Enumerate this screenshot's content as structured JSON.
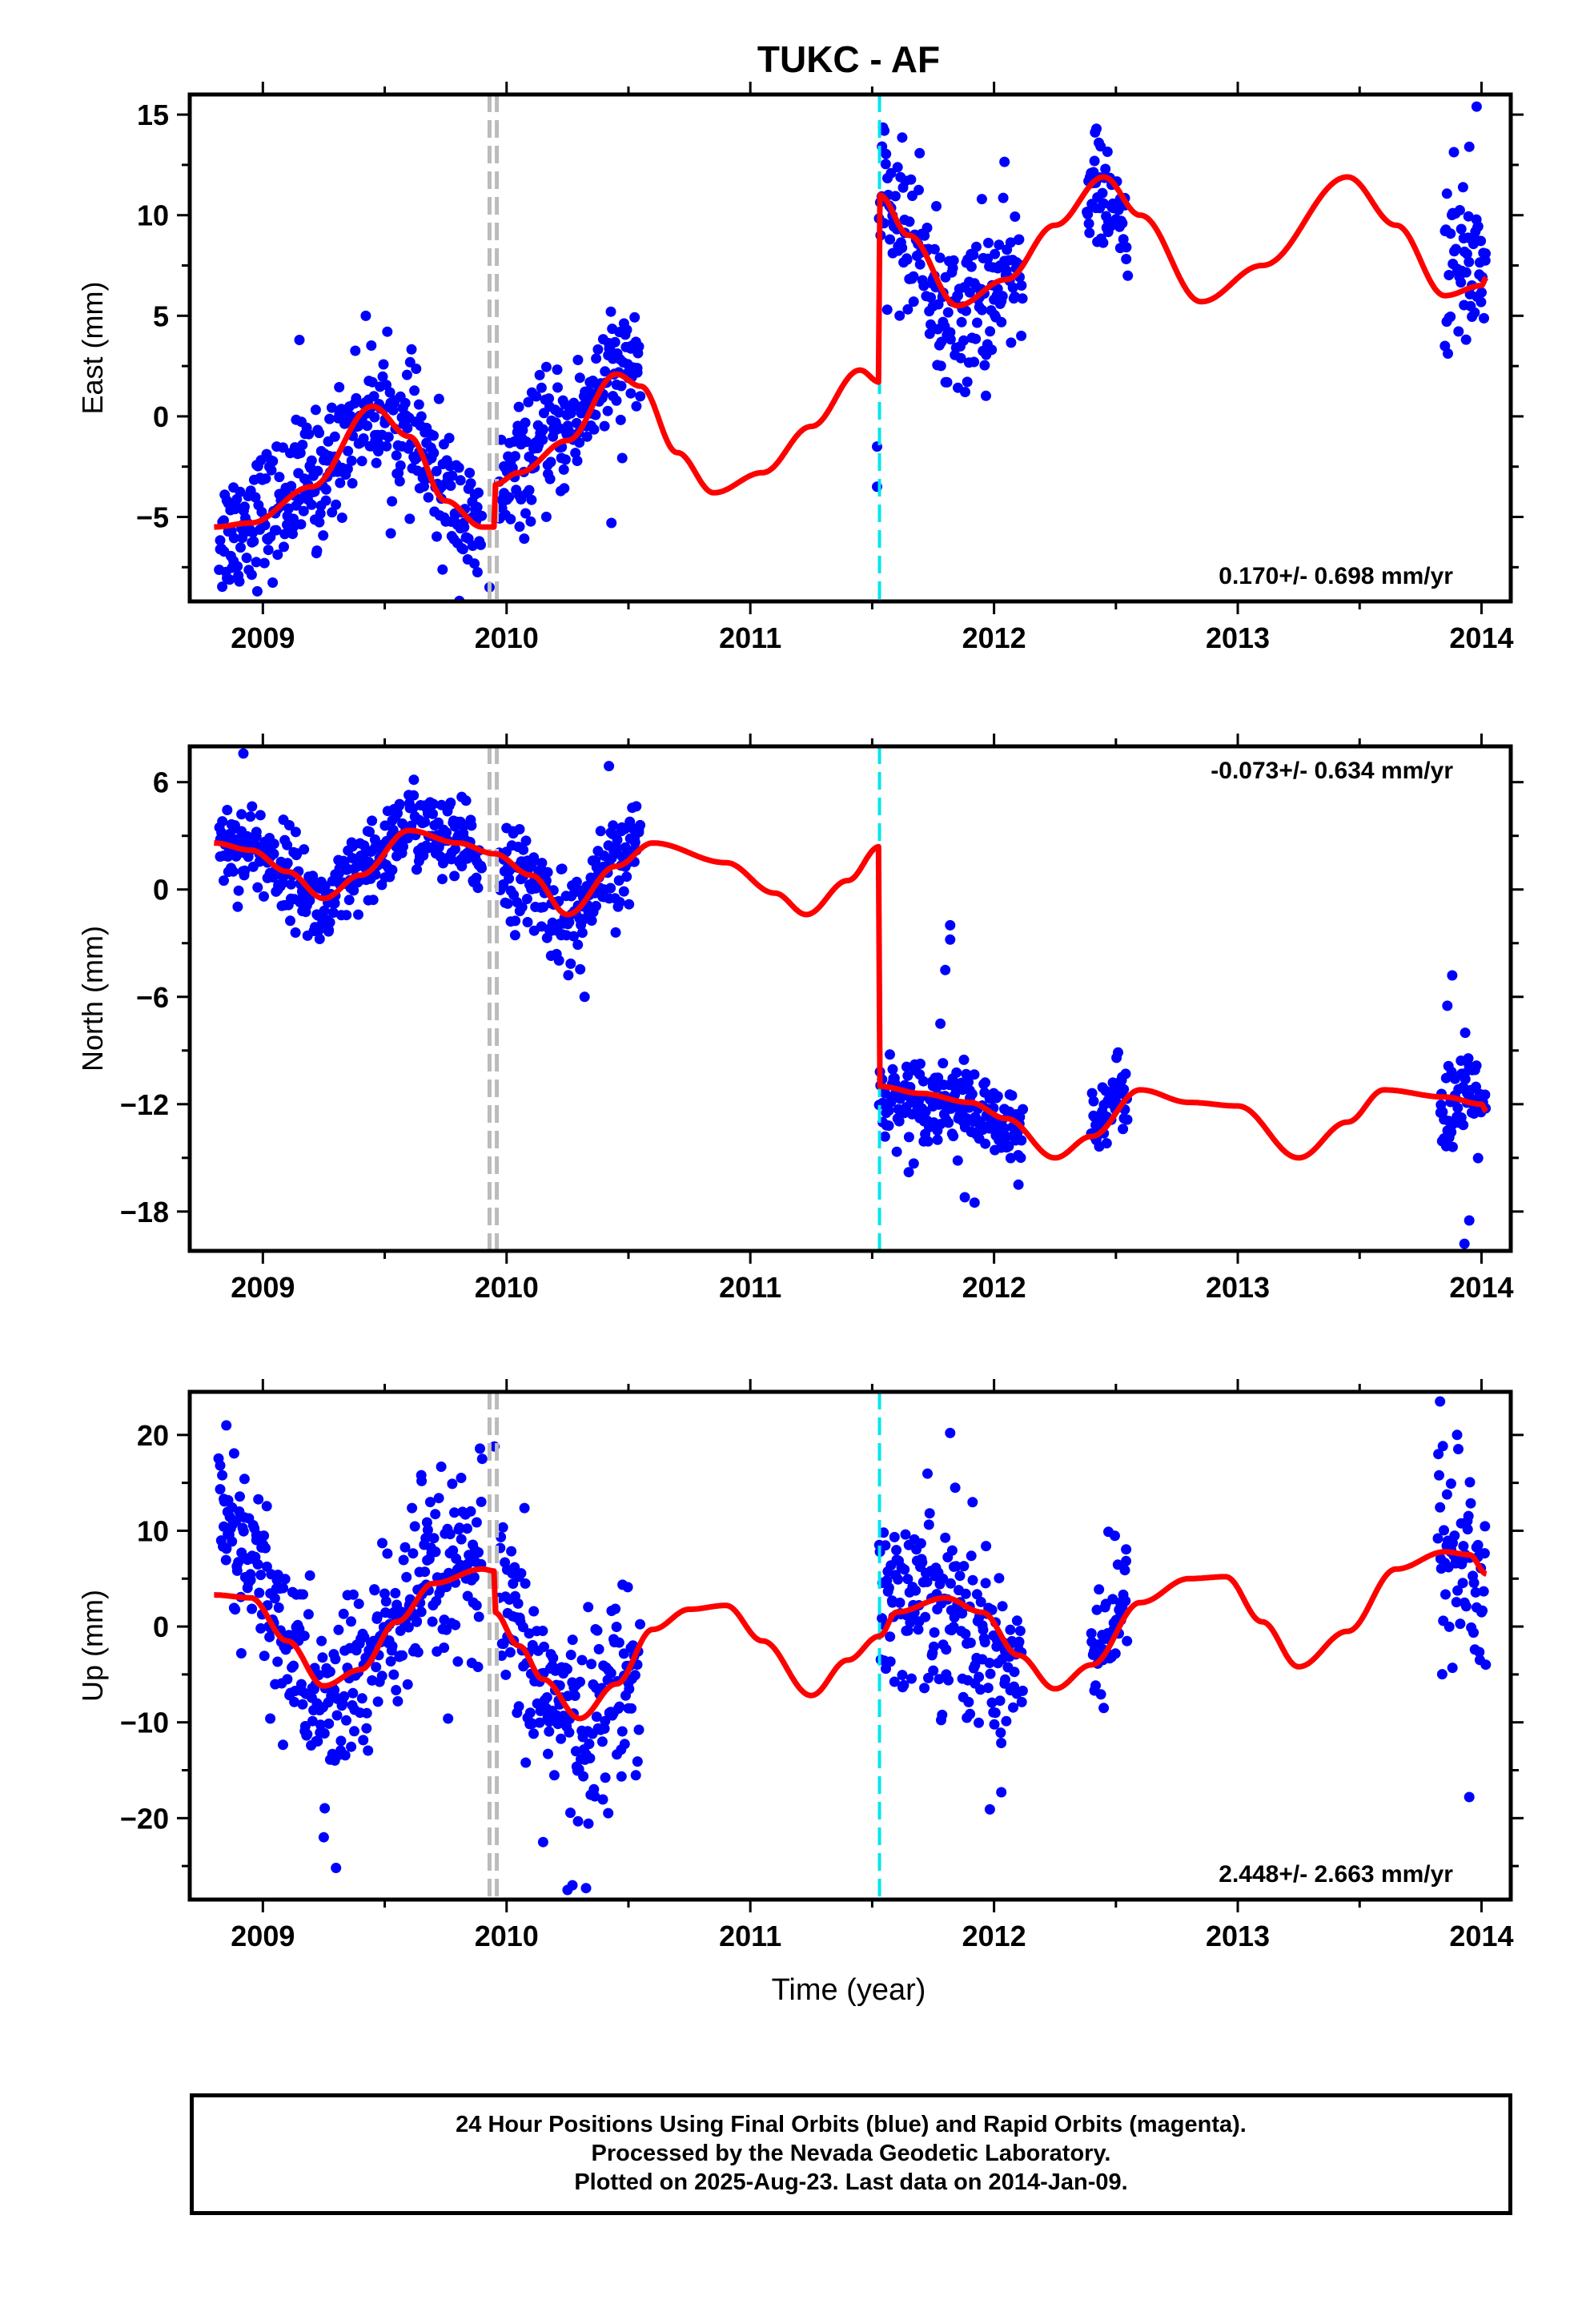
{
  "title": "TUKC - AF",
  "xlabel": "Time (year)",
  "caption": [
    "24 Hour Positions Using Final Orbits (blue) and Rapid Orbits (magenta).",
    "Processed by the Nevada Geodetic Laboratory.",
    "Plotted on 2025-Aug-23. Last data on 2014-Jan-09."
  ],
  "colors": {
    "final_orbits": "#0000ff",
    "model": "#ff0000",
    "equipment_change": "#bbbbbb",
    "earthquake": "#00e5ee"
  },
  "chart_data": [
    {
      "type": "scatter",
      "ylabel": "East (mm)",
      "xlim": [
        2008.7,
        2014.12
      ],
      "ylim": [
        -9.2,
        16
      ],
      "xticks": [
        2009,
        2010,
        2011,
        2012,
        2013,
        2014
      ],
      "yticks": [
        -5,
        0,
        5,
        10,
        15
      ],
      "rate": "0.170+/- 0.698 mm/yr",
      "rate_position": "bottom-right",
      "vlines_gray": [
        2009.93,
        2009.96
      ],
      "vline_cyan": 2011.53,
      "model_knots": [
        [
          2008.8,
          -5.5
        ],
        [
          2008.95,
          -5.3
        ],
        [
          2009.2,
          -3.5
        ],
        [
          2009.45,
          0.5
        ],
        [
          2009.6,
          -1.0
        ],
        [
          2009.75,
          -4.2
        ],
        [
          2009.9,
          -5.5
        ],
        [
          2009.95,
          -5.5
        ],
        [
          2009.95,
          -3.4
        ],
        [
          2010.05,
          -2.8
        ],
        [
          2010.25,
          -1.2
        ],
        [
          2010.45,
          2.1
        ],
        [
          2010.55,
          1.5
        ],
        [
          2010.7,
          -1.8
        ],
        [
          2010.85,
          -3.8
        ],
        [
          2011.05,
          -2.8
        ],
        [
          2011.25,
          -0.5
        ],
        [
          2011.45,
          2.3
        ],
        [
          2011.53,
          1.7
        ],
        [
          2011.53,
          11.0
        ],
        [
          2011.65,
          9.0
        ],
        [
          2011.85,
          5.5
        ],
        [
          2012.05,
          6.8
        ],
        [
          2012.25,
          9.5
        ],
        [
          2012.45,
          11.9
        ],
        [
          2012.6,
          10.0
        ],
        [
          2012.85,
          5.7
        ],
        [
          2013.1,
          7.5
        ],
        [
          2013.45,
          11.9
        ],
        [
          2013.65,
          9.5
        ],
        [
          2013.85,
          6.0
        ],
        [
          2014.0,
          6.5
        ],
        [
          2014.02,
          6.9
        ]
      ],
      "segments": [
        {
          "x0": 2008.82,
          "x1": 2009.9,
          "amp": 1.6,
          "y": [
            [
              2008.8,
              -6.0
            ],
            [
              2009.0,
              -4.8
            ],
            [
              2009.2,
              -3.2
            ],
            [
              2009.45,
              0.5
            ],
            [
              2009.6,
              -1.0
            ],
            [
              2009.75,
              -3.8
            ],
            [
              2009.9,
              -6.2
            ]
          ]
        },
        {
          "x0": 2009.97,
          "x1": 2010.55,
          "amp": 1.5,
          "y": [
            [
              2009.97,
              -3.5
            ],
            [
              2010.2,
              -1.0
            ],
            [
              2010.45,
              2.1
            ],
            [
              2010.55,
              2.8
            ]
          ]
        },
        {
          "x0": 2011.53,
          "x1": 2012.12,
          "amp": 1.9,
          "y": [
            [
              2011.53,
              10.5
            ],
            [
              2011.7,
              8.5
            ],
            [
              2011.8,
              4.5
            ],
            [
              2011.9,
              5.2
            ],
            [
              2012.12,
              7.2
            ]
          ]
        },
        {
          "x0": 2012.38,
          "x1": 2012.55,
          "amp": 1.2,
          "y": [
            [
              2012.38,
              11.5
            ],
            [
              2012.55,
              9.5
            ]
          ]
        },
        {
          "x0": 2013.85,
          "x1": 2014.02,
          "amp": 2.2,
          "y": [
            [
              2013.85,
              7.5
            ],
            [
              2014.02,
              7.8
            ]
          ]
        }
      ],
      "outliers": [
        [
          2011.52,
          -1.5
        ],
        [
          2011.52,
          -3.5
        ],
        [
          2011.55,
          14.2
        ],
        [
          2012.42,
          14.3
        ],
        [
          2013.98,
          15.4
        ],
        [
          2013.95,
          13.4
        ],
        [
          2010.43,
          -5.3
        ],
        [
          2009.93,
          -8.5
        ],
        [
          2009.15,
          3.8
        ],
        [
          2009.22,
          -6.8
        ],
        [
          2013.85,
          3.5
        ],
        [
          2011.95,
          10.8
        ]
      ]
    },
    {
      "type": "scatter",
      "ylabel": "North (mm)",
      "xlim": [
        2008.7,
        2014.12
      ],
      "ylim": [
        -20.2,
        8
      ],
      "xticks": [
        2009,
        2010,
        2011,
        2012,
        2013,
        2014
      ],
      "yticks": [
        -18,
        -12,
        -6,
        0,
        6
      ],
      "rate": "-0.073+/- 0.634 mm/yr",
      "rate_position": "top-right",
      "vlines_gray": [
        2009.93,
        2009.96
      ],
      "vline_cyan": 2011.53,
      "model_knots": [
        [
          2008.8,
          2.6
        ],
        [
          2008.95,
          2.2
        ],
        [
          2009.1,
          1.0
        ],
        [
          2009.25,
          -0.5
        ],
        [
          2009.4,
          0.8
        ],
        [
          2009.6,
          3.3
        ],
        [
          2009.8,
          2.6
        ],
        [
          2009.95,
          2.0
        ],
        [
          2010.1,
          0.8
        ],
        [
          2010.25,
          -1.4
        ],
        [
          2010.45,
          1.3
        ],
        [
          2010.6,
          2.6
        ],
        [
          2010.9,
          1.5
        ],
        [
          2011.1,
          -0.2
        ],
        [
          2011.23,
          -1.4
        ],
        [
          2011.4,
          0.5
        ],
        [
          2011.53,
          2.4
        ],
        [
          2011.53,
          -11.0
        ],
        [
          2011.7,
          -11.4
        ],
        [
          2011.9,
          -11.9
        ],
        [
          2012.05,
          -12.8
        ],
        [
          2012.25,
          -15.0
        ],
        [
          2012.4,
          -13.8
        ],
        [
          2012.6,
          -11.2
        ],
        [
          2012.8,
          -11.9
        ],
        [
          2013.0,
          -12.1
        ],
        [
          2013.25,
          -15.0
        ],
        [
          2013.45,
          -13.0
        ],
        [
          2013.6,
          -11.2
        ],
        [
          2013.85,
          -11.6
        ],
        [
          2014.0,
          -12.0
        ],
        [
          2014.02,
          -12.4
        ]
      ],
      "segments": [
        {
          "x0": 2008.82,
          "x1": 2009.9,
          "amp": 1.2,
          "y": [
            [
              2008.8,
              2.6
            ],
            [
              2008.95,
              2.4
            ],
            [
              2009.1,
              1.0
            ],
            [
              2009.25,
              -1.2
            ],
            [
              2009.4,
              0.8
            ],
            [
              2009.6,
              3.6
            ],
            [
              2009.8,
              2.5
            ],
            [
              2009.9,
              1.5
            ]
          ]
        },
        {
          "x0": 2009.97,
          "x1": 2010.55,
          "amp": 1.3,
          "y": [
            [
              2009.97,
              1.5
            ],
            [
              2010.1,
              0.2
            ],
            [
              2010.25,
              -1.8
            ],
            [
              2010.45,
              1.0
            ],
            [
              2010.55,
              3.0
            ]
          ]
        },
        {
          "x0": 2011.53,
          "x1": 2012.12,
          "amp": 1.1,
          "y": [
            [
              2011.53,
              -11.5
            ],
            [
              2011.8,
              -11.8
            ],
            [
              2012.12,
              -13.8
            ]
          ]
        },
        {
          "x0": 2012.4,
          "x1": 2012.55,
          "amp": 0.9,
          "y": [
            [
              2012.4,
              -12.6
            ],
            [
              2012.55,
              -11.2
            ]
          ]
        },
        {
          "x0": 2013.83,
          "x1": 2014.02,
          "amp": 1.4,
          "y": [
            [
              2013.83,
              -12.2
            ],
            [
              2014.02,
              -11.5
            ]
          ]
        }
      ],
      "outliers": [
        [
          2008.92,
          7.6
        ],
        [
          2010.42,
          6.9
        ],
        [
          2010.32,
          -6.0
        ],
        [
          2011.82,
          -2.0
        ],
        [
          2011.82,
          -2.8
        ],
        [
          2011.8,
          -4.5
        ],
        [
          2011.78,
          -7.5
        ],
        [
          2011.92,
          -17.5
        ],
        [
          2011.88,
          -17.2
        ],
        [
          2013.88,
          -4.8
        ],
        [
          2013.86,
          -6.5
        ],
        [
          2013.95,
          -18.5
        ],
        [
          2013.93,
          -19.8
        ],
        [
          2012.1,
          -16.5
        ],
        [
          2011.65,
          -15.8
        ]
      ]
    },
    {
      "type": "scatter",
      "ylabel": "Up (mm)",
      "xlim": [
        2008.7,
        2014.12
      ],
      "ylim": [
        -28.5,
        24.5
      ],
      "xticks": [
        2009,
        2010,
        2011,
        2012,
        2013,
        2014
      ],
      "yticks": [
        -20,
        -10,
        0,
        10,
        20
      ],
      "rate": "2.448+/- 2.663 mm/yr",
      "rate_position": "bottom-right",
      "vlines_gray": [
        2009.93,
        2009.96
      ],
      "vline_cyan": 2011.53,
      "model_knots": [
        [
          2008.8,
          3.3
        ],
        [
          2008.95,
          3.0
        ],
        [
          2009.1,
          -1.5
        ],
        [
          2009.25,
          -6.2
        ],
        [
          2009.4,
          -4.5
        ],
        [
          2009.55,
          0.5
        ],
        [
          2009.7,
          4.5
        ],
        [
          2009.9,
          6.0
        ],
        [
          2009.95,
          5.8
        ],
        [
          2009.95,
          1.5
        ],
        [
          2010.05,
          -2.0
        ],
        [
          2010.15,
          -5.5
        ],
        [
          2010.3,
          -9.6
        ],
        [
          2010.45,
          -6.0
        ],
        [
          2010.6,
          -0.3
        ],
        [
          2010.75,
          1.8
        ],
        [
          2010.9,
          2.2
        ],
        [
          2011.05,
          -1.5
        ],
        [
          2011.25,
          -7.2
        ],
        [
          2011.4,
          -3.5
        ],
        [
          2011.53,
          -1.0
        ],
        [
          2011.6,
          1.5
        ],
        [
          2011.8,
          3.0
        ],
        [
          2011.95,
          1.5
        ],
        [
          2012.1,
          -3.0
        ],
        [
          2012.25,
          -6.5
        ],
        [
          2012.4,
          -4.0
        ],
        [
          2012.6,
          2.5
        ],
        [
          2012.8,
          5.0
        ],
        [
          2012.95,
          5.2
        ],
        [
          2013.1,
          0.5
        ],
        [
          2013.25,
          -4.2
        ],
        [
          2013.45,
          -0.5
        ],
        [
          2013.65,
          6.0
        ],
        [
          2013.85,
          7.8
        ],
        [
          2013.95,
          7.5
        ],
        [
          2014.02,
          5.5
        ]
      ],
      "segments": [
        {
          "x0": 2008.82,
          "x1": 2009.9,
          "amp": 4.8,
          "y": [
            [
              2008.8,
              9.0
            ],
            [
              2008.95,
              6.5
            ],
            [
              2009.1,
              -1.5
            ],
            [
              2009.25,
              -9.0
            ],
            [
              2009.4,
              -5.0
            ],
            [
              2009.55,
              0.5
            ],
            [
              2009.7,
              4.5
            ],
            [
              2009.9,
              6.0
            ]
          ]
        },
        {
          "x0": 2009.97,
          "x1": 2010.55,
          "amp": 5.0,
          "y": [
            [
              2009.97,
              1.0
            ],
            [
              2010.15,
              -6.0
            ],
            [
              2010.3,
              -11.0
            ],
            [
              2010.45,
              -7.0
            ],
            [
              2010.55,
              -2.0
            ]
          ]
        },
        {
          "x0": 2011.53,
          "x1": 2012.12,
          "amp": 5.0,
          "y": [
            [
              2011.53,
              3.0
            ],
            [
              2011.8,
              3.5
            ],
            [
              2011.95,
              -2.0
            ],
            [
              2012.12,
              -4.0
            ]
          ]
        },
        {
          "x0": 2012.4,
          "x1": 2012.55,
          "amp": 3.5,
          "y": [
            [
              2012.4,
              -1.0
            ],
            [
              2012.55,
              2.0
            ]
          ]
        },
        {
          "x0": 2013.82,
          "x1": 2014.02,
          "amp": 6.0,
          "y": [
            [
              2013.82,
              9.0
            ],
            [
              2014.02,
              5.0
            ]
          ]
        }
      ],
      "outliers": [
        [
          2008.85,
          21.0
        ],
        [
          2009.95,
          18.8
        ],
        [
          2009.9,
          17.5
        ],
        [
          2009.3,
          -25.2
        ],
        [
          2010.27,
          -27.0
        ],
        [
          2010.25,
          -27.5
        ],
        [
          2010.15,
          -22.5
        ],
        [
          2009.25,
          -22.0
        ],
        [
          2011.82,
          20.2
        ],
        [
          2013.83,
          23.5
        ],
        [
          2013.95,
          -17.8
        ],
        [
          2012.03,
          -17.3
        ],
        [
          2012.45,
          -8.5
        ],
        [
          2013.9,
          20.0
        ],
        [
          2009.65,
          15.8
        ]
      ]
    }
  ]
}
